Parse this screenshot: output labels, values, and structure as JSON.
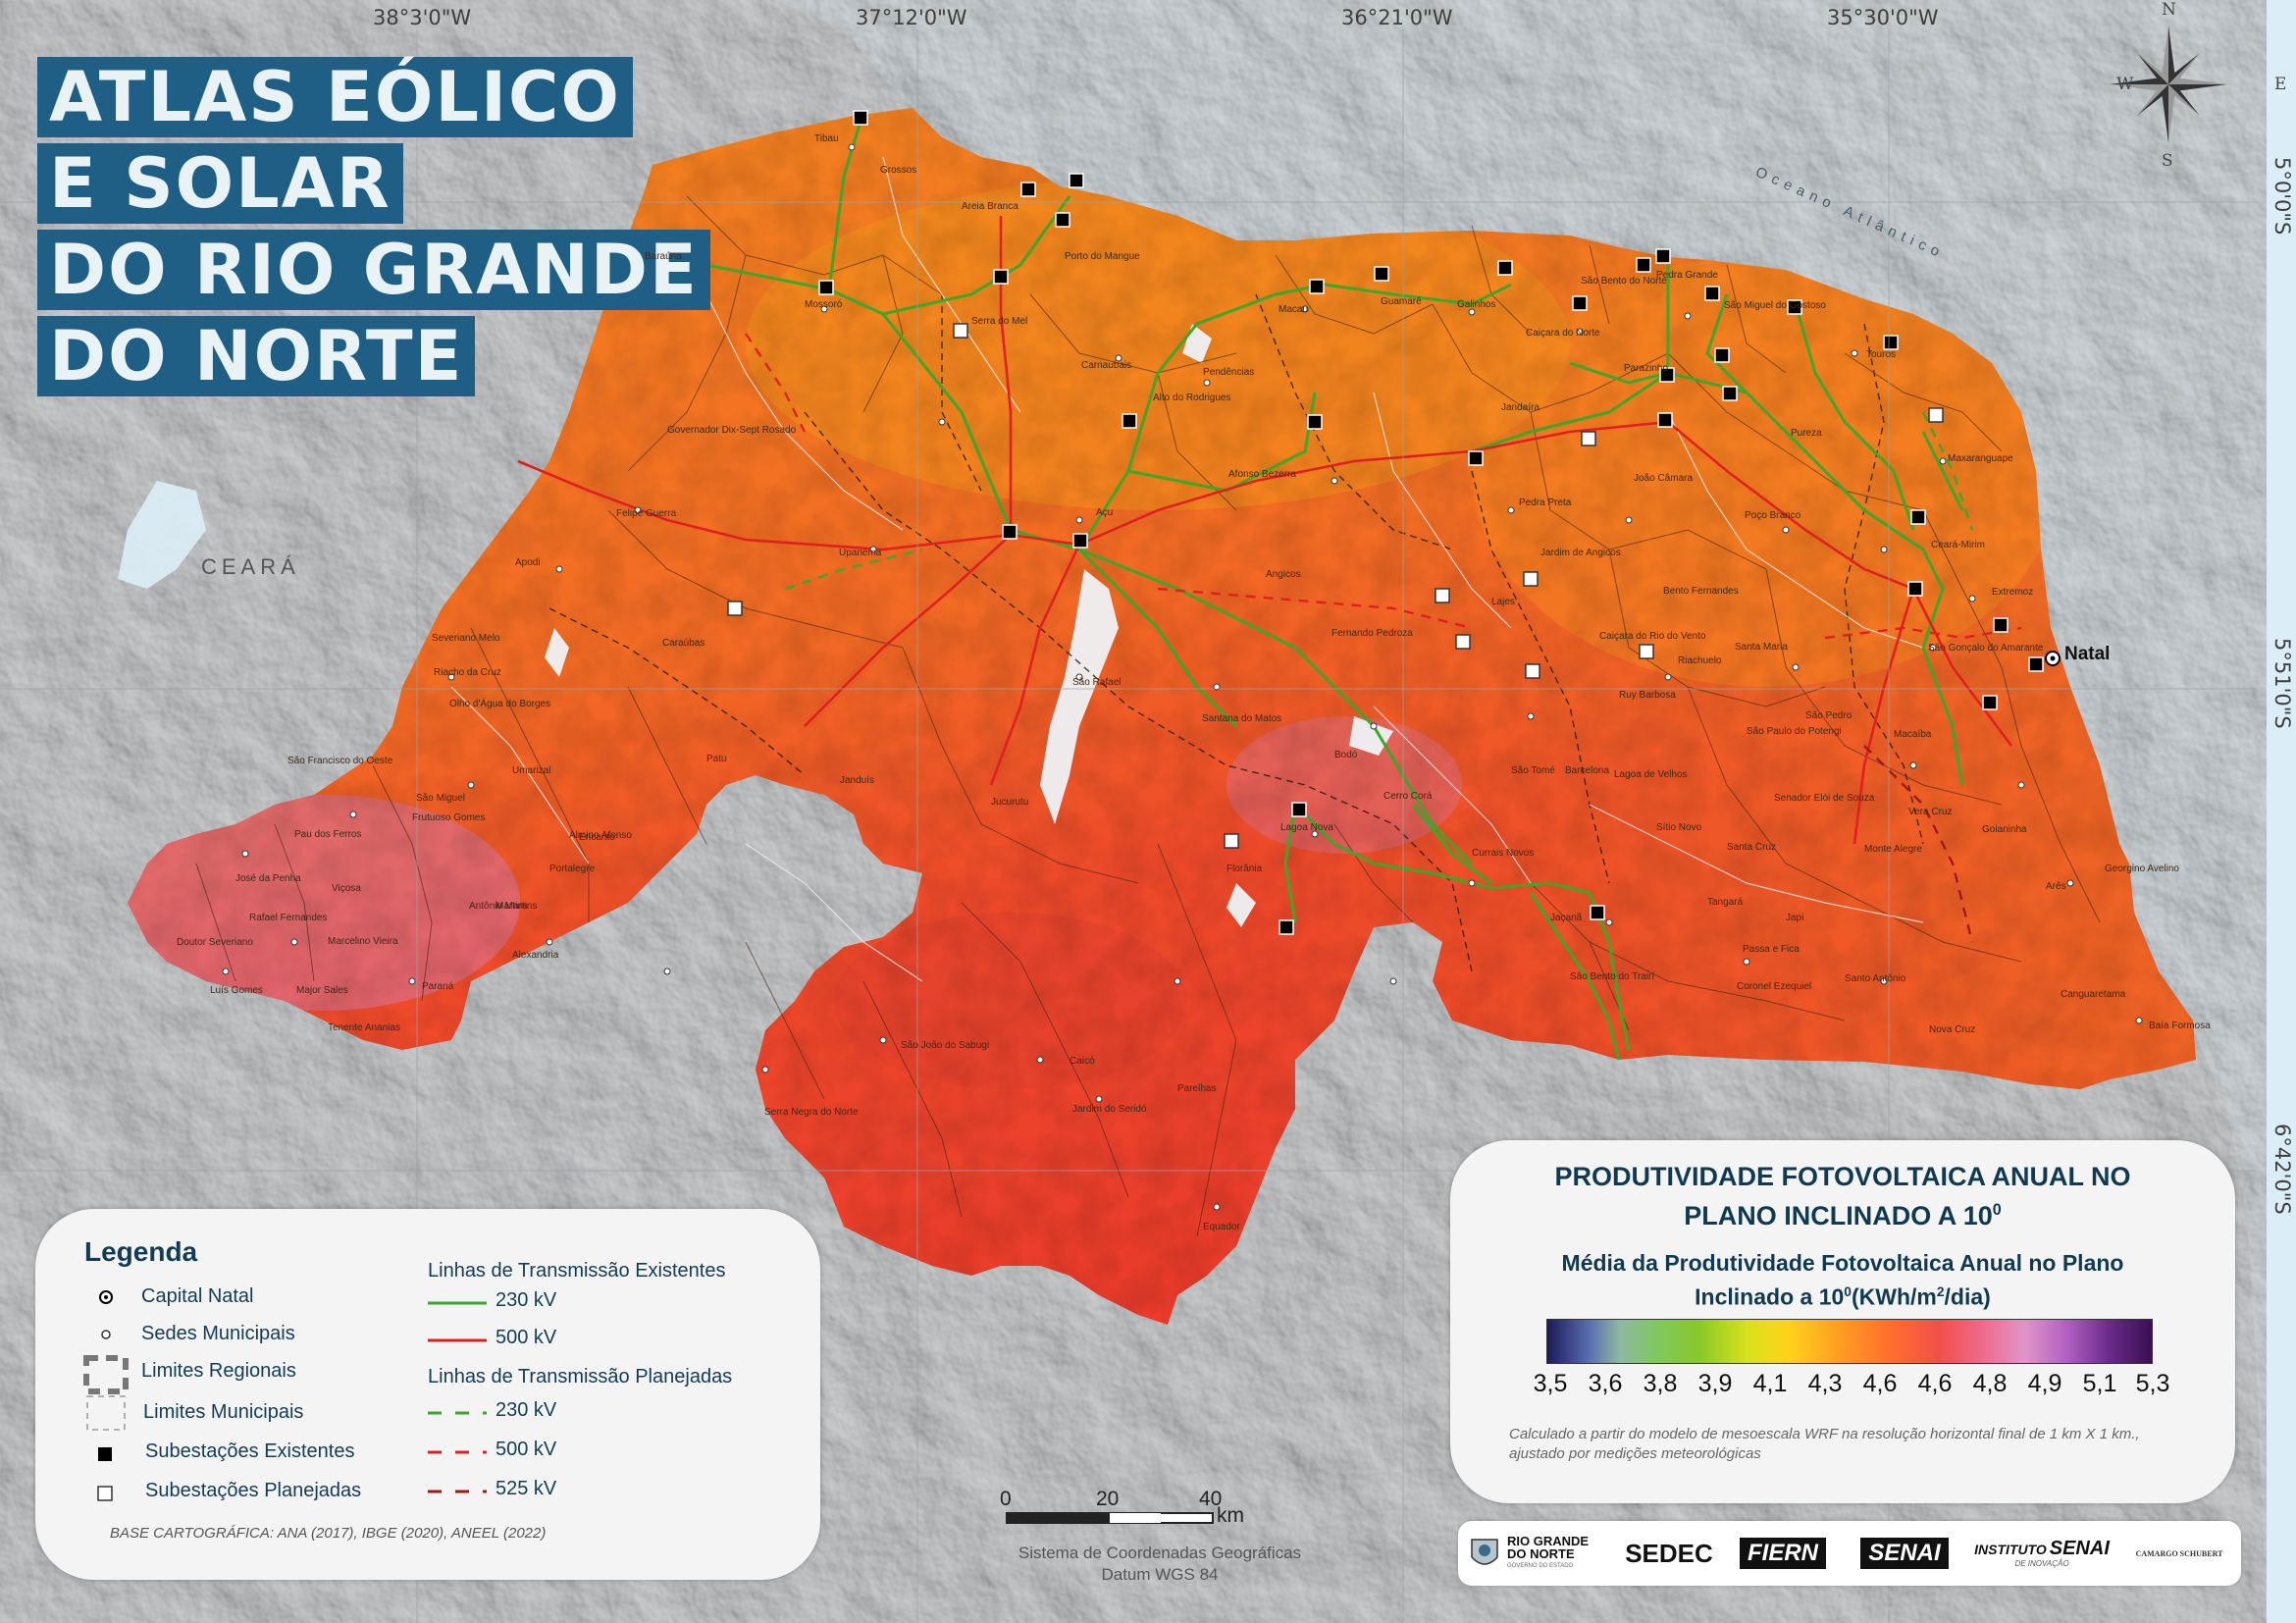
{
  "title_lines": [
    "ATLAS EÓLICO",
    "E SOLAR",
    "DO RIO GRANDE",
    "DO NORTE"
  ],
  "coordinates": {
    "top": [
      "38°3'0\"W",
      "37°12'0\"W",
      "36°21'0\"W",
      "35°30'0\"W"
    ],
    "right": [
      "5°0'0\"S",
      "5°51'0\"S",
      "6°42'0\"S"
    ]
  },
  "compass": {
    "n": "N",
    "s": "S",
    "e": "E",
    "w": "W"
  },
  "map_labels": {
    "ceara": "CEARÁ",
    "ocean": "Oceano Atlântico",
    "capital": "Natal",
    "places": [
      "Tibau",
      "Grossos",
      "Baraúna",
      "Areia Branca",
      "Porto do Mangue",
      "Mossoró",
      "Serra do Mel",
      "Carnaubais",
      "Pendências",
      "Macau",
      "Guamaré",
      "Galinhos",
      "Caiçara do Norte",
      "São Bento do Norte",
      "Pedra Grande",
      "São Miguel do Gostoso",
      "Touros",
      "Parazinho",
      "Jandaíra",
      "Pureza",
      "Maxaranguape",
      "João Câmara",
      "Pedra Preta",
      "Poço Branco",
      "Ceará-Mirim",
      "Extremoz",
      "São Gonçalo do Amarante",
      "Jardim de Angicos",
      "Bento Fernandes",
      "Afonso Bezerra",
      "Angicos",
      "Lajes",
      "Açu",
      "Alto do Rodrigues",
      "Governador Dix-Sept Rosado",
      "Felipe Guerra",
      "Apodi",
      "Upanema",
      "Caraúbas",
      "Severiano Melo",
      "São Rafael",
      "Santana do Matos",
      "Fernando Pedroza",
      "Caiçara do Rio do Vento",
      "Riachuelo",
      "Santa Maria",
      "Ruy Barbosa",
      "São Paulo do Potengi",
      "São Pedro",
      "Macaíba",
      "Bodó",
      "Cerro Corá",
      "Lagoa Nova",
      "Currais Novos",
      "Florânia",
      "São Tomé",
      "Barcelona",
      "Lagoa de Velhos",
      "Sítio Novo",
      "Tangará",
      "Santa Cruz",
      "Senador Elói de Souza",
      "Monte Alegre",
      "Vera Cruz",
      "Goianinha",
      "Georgino Avelino",
      "Arês",
      "Canguaretama",
      "Baía Formosa",
      "Nova Cruz",
      "Santo Antônio",
      "Passa e Fica",
      "Japi",
      "São Bento do Trairí",
      "Coronel Ezequiel",
      "Jaçanã",
      "Caicó",
      "Jardim do Seridó",
      "Parelhas",
      "Equador",
      "Serra Negra do Norte",
      "São João do Sabugi",
      "Jucurutu",
      "Janduís",
      "Patu",
      "Almino Afonso",
      "Martins",
      "Portalegre",
      "Pau dos Ferros",
      "São Miguel",
      "Encanto",
      "Antônio Martins",
      "Alexandria",
      "Paraná",
      "José da Penha",
      "Marcelino Vieira",
      "Luís Gomes",
      "Major Sales",
      "Umarizal",
      "Tenente Ananias",
      "Olho d'Água do Borges",
      "Frutuoso Gomes",
      "Riacho da Cruz",
      "Viçosa",
      "Rafael Fernandes",
      "São Francisco do Oeste",
      "Doutor Severiano"
    ]
  },
  "legend": {
    "title": "Legenda",
    "items": [
      {
        "label": "Capital Natal"
      },
      {
        "label": "Sedes Municipais"
      },
      {
        "label": "Limites Regionais"
      },
      {
        "label": "Limites Municipais"
      },
      {
        "label": "Subestações Existentes"
      },
      {
        "label": "Subestações Planejadas"
      }
    ],
    "existing_title": "Linhas de Transmissão Existentes",
    "existing": [
      {
        "label": "230 kV",
        "color": "#3aa82a"
      },
      {
        "label": "500 kV",
        "color": "#e02020"
      }
    ],
    "planned_title": "Linhas de Transmissão Planejadas",
    "planned": [
      {
        "label": "230 kV",
        "color": "#3aa82a"
      },
      {
        "label": "500 kV",
        "color": "#e02020"
      },
      {
        "label": "525 kV",
        "color": "#a01818"
      }
    ],
    "base": "BASE CARTOGRÁFICA: ANA (2017), IBGE (2020), ANEEL (2022)"
  },
  "pv_panel": {
    "title_line1": "PRODUTIVIDADE FOTOVOLTAICA ANUAL NO",
    "title_line2_pre": "PLANO INCLINADO A 10",
    "title_sup": "0",
    "subtitle_line1": "Média da Produtividade Fotovoltaica Anual no Plano",
    "subtitle_line2_pre": "Inclinado a 10",
    "subtitle_sup1": "0",
    "subtitle_line2_mid": "(KWh/m",
    "subtitle_sup2": "2",
    "subtitle_line2_post": "/dia)",
    "ticks": [
      "3,5",
      "3,6",
      "3,8",
      "3,9",
      "4,1",
      "4,3",
      "4,6",
      "4,6",
      "4,8",
      "4,9",
      "5,1",
      "5,3"
    ],
    "note": "Calculado a partir do modelo de mesoescala WRF na resolução horizontal final de 1 km X 1 km., ajustado por medições meteorológicas"
  },
  "scale": {
    "labels": [
      "0",
      "20",
      "40"
    ],
    "unit": "km"
  },
  "datum": {
    "line1": "Sistema de Coordenadas Geográficas",
    "line2": "Datum WGS 84"
  },
  "logos": {
    "rn_line1": "RIO GRANDE",
    "rn_line2": "DO NORTE",
    "rn_line3": "GOVERNO DO ESTADO",
    "sedec": "SEDEC",
    "fiern": "FIERN",
    "senai": "SENAI",
    "instituto_line1": "INSTITUTO",
    "instituto_senai": "SENAI",
    "instituto_line2": "DE INOVAÇÃO",
    "camargo": "CAMARGO SCHUBERT"
  },
  "colors": {
    "ocean": "#dbeef7",
    "terrain": "#c8cacc",
    "orange": "#f47a20",
    "red": "#e8322a",
    "pink": "#d86a8a",
    "title_bg": "#1f5f86",
    "line_230": "#3aa82a",
    "line_500": "#e02020",
    "line_525": "#a01818"
  }
}
